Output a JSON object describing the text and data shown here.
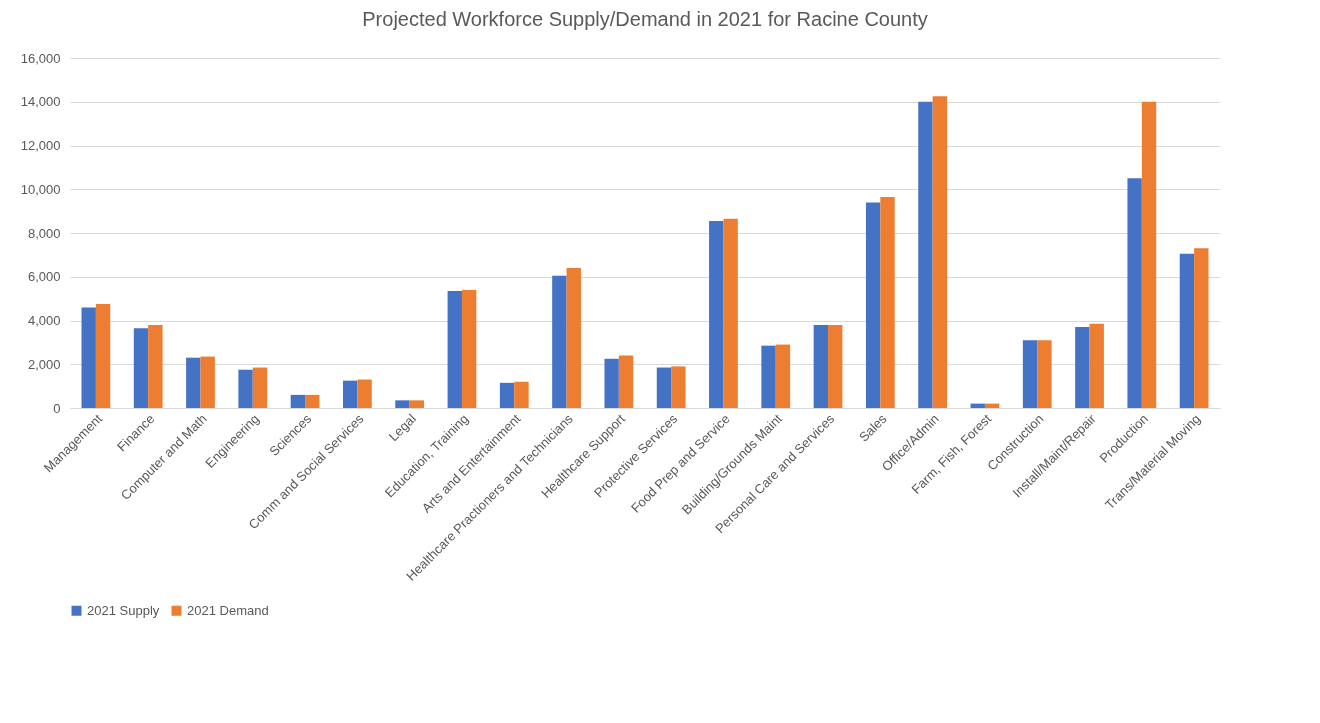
{
  "chart_data": {
    "type": "bar",
    "title": "Projected Workforce Supply/Demand in 2021 for Racine County",
    "categories": [
      "Management",
      "Finance",
      "Computer and Math",
      "Engineering",
      "Sciences",
      "Comm and Social Services",
      "Legal",
      "Education, Training",
      "Arts and Entertainment",
      "Healthcare Practioners and Technicians",
      "Healthcare Support",
      "Protective Services",
      "Food Prep and Service",
      "Building/Grounds Maint",
      "Personal Care and Services",
      "Sales",
      "Office/Admin",
      "Farm, Fish, Forest",
      "Construction",
      "Install/Maint/Repair",
      "Production",
      "Trans/Material Moving"
    ],
    "series": [
      {
        "name": "2021 Supply",
        "color": "#4472c4",
        "values": [
          4600,
          3650,
          2300,
          1750,
          600,
          1250,
          350,
          5350,
          1150,
          6050,
          2250,
          1850,
          8550,
          2850,
          3800,
          9400,
          14000,
          200,
          3100,
          3700,
          10500,
          7050
        ]
      },
      {
        "name": "2021 Demand",
        "color": "#ed7d31",
        "values": [
          4750,
          3800,
          2350,
          1850,
          600,
          1300,
          350,
          5400,
          1200,
          6400,
          2400,
          1900,
          8650,
          2900,
          3800,
          9650,
          14250,
          200,
          3100,
          3850,
          14000,
          7300
        ]
      }
    ],
    "ylim": [
      0,
      16000
    ],
    "yticks": [
      0,
      {
        "value": 2000,
        "label": "2,000"
      },
      {
        "value": 4000,
        "label": "4,000"
      },
      {
        "value": 6000,
        "label": "6,000"
      },
      {
        "value": 8000,
        "label": "8,000"
      },
      {
        "value": 10000,
        "label": "10,000"
      },
      {
        "value": 12000,
        "label": "12,000"
      },
      {
        "value": 14000,
        "label": "14,000"
      },
      {
        "value": 16000,
        "label": "16,000"
      }
    ],
    "grid": "y",
    "legend": "bottom"
  }
}
